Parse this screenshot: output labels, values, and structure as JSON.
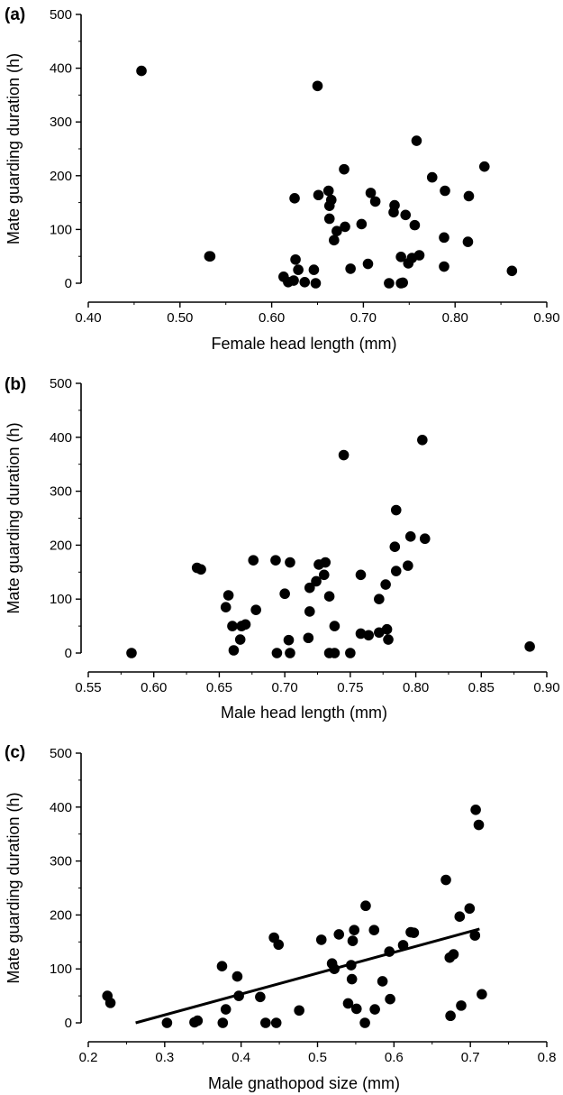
{
  "chart_data": [
    {
      "type": "scatter",
      "panel_label": "(a)",
      "xlabel": "Female head length (mm)",
      "ylabel": "Mate guarding duration (h)",
      "xlim": [
        0.4,
        0.9
      ],
      "ylim": [
        0,
        500
      ],
      "xticks": [
        "0.40",
        "0.50",
        "0.60",
        "0.70",
        "0.80",
        "0.90"
      ],
      "yticks": [
        "0",
        "100",
        "200",
        "300",
        "400",
        "500"
      ],
      "grid": false,
      "points": [
        [
          0.458,
          395
        ],
        [
          0.533,
          50
        ],
        [
          0.65,
          367
        ],
        [
          0.758,
          265
        ],
        [
          0.832,
          217
        ],
        [
          0.679,
          212
        ],
        [
          0.775,
          197
        ],
        [
          0.662,
          172
        ],
        [
          0.708,
          168
        ],
        [
          0.789,
          172
        ],
        [
          0.651,
          164
        ],
        [
          0.625,
          158
        ],
        [
          0.665,
          155
        ],
        [
          0.713,
          152
        ],
        [
          0.815,
          162
        ],
        [
          0.663,
          144
        ],
        [
          0.734,
          145
        ],
        [
          0.733,
          132
        ],
        [
          0.746,
          127
        ],
        [
          0.663,
          120
        ],
        [
          0.698,
          110
        ],
        [
          0.756,
          108
        ],
        [
          0.68,
          105
        ],
        [
          0.671,
          97
        ],
        [
          0.668,
          80
        ],
        [
          0.788,
          85
        ],
        [
          0.814,
          77
        ],
        [
          0.761,
          52
        ],
        [
          0.532,
          50
        ],
        [
          0.741,
          49
        ],
        [
          0.753,
          47
        ],
        [
          0.626,
          44
        ],
        [
          0.749,
          37
        ],
        [
          0.705,
          36
        ],
        [
          0.686,
          27
        ],
        [
          0.629,
          25
        ],
        [
          0.646,
          25
        ],
        [
          0.788,
          31
        ],
        [
          0.862,
          23
        ],
        [
          0.613,
          12
        ],
        [
          0.618,
          2
        ],
        [
          0.624,
          5
        ],
        [
          0.636,
          2
        ],
        [
          0.648,
          0
        ],
        [
          0.728,
          0
        ],
        [
          0.741,
          0
        ],
        [
          0.743,
          1
        ]
      ]
    },
    {
      "type": "scatter",
      "panel_label": "(b)",
      "xlabel": "Male head length (mm)",
      "ylabel": "Mate guarding duration (h)",
      "xlim": [
        0.55,
        0.9
      ],
      "ylim": [
        0,
        500
      ],
      "xticks": [
        "0.55",
        "0.60",
        "0.65",
        "0.70",
        "0.75",
        "0.80",
        "0.85",
        "0.90"
      ],
      "yticks": [
        "0",
        "100",
        "200",
        "300",
        "400",
        "500"
      ],
      "grid": false,
      "points": [
        [
          0.805,
          395
        ],
        [
          0.745,
          367
        ],
        [
          0.785,
          265
        ],
        [
          0.796,
          216
        ],
        [
          0.807,
          212
        ],
        [
          0.784,
          197
        ],
        [
          0.693,
          172
        ],
        [
          0.676,
          172
        ],
        [
          0.704,
          168
        ],
        [
          0.731,
          168
        ],
        [
          0.726,
          164
        ],
        [
          0.794,
          162
        ],
        [
          0.633,
          158
        ],
        [
          0.636,
          155
        ],
        [
          0.785,
          152
        ],
        [
          0.73,
          145
        ],
        [
          0.758,
          145
        ],
        [
          0.724,
          133
        ],
        [
          0.777,
          127
        ],
        [
          0.719,
          121
        ],
        [
          0.7,
          110
        ],
        [
          0.657,
          107
        ],
        [
          0.734,
          105
        ],
        [
          0.772,
          100
        ],
        [
          0.655,
          85
        ],
        [
          0.678,
          80
        ],
        [
          0.719,
          77
        ],
        [
          0.66,
          50
        ],
        [
          0.667,
          50
        ],
        [
          0.67,
          53
        ],
        [
          0.738,
          50
        ],
        [
          0.758,
          36
        ],
        [
          0.764,
          33
        ],
        [
          0.778,
          44
        ],
        [
          0.772,
          38
        ],
        [
          0.666,
          25
        ],
        [
          0.703,
          24
        ],
        [
          0.718,
          28
        ],
        [
          0.779,
          25
        ],
        [
          0.661,
          5
        ],
        [
          0.583,
          0
        ],
        [
          0.694,
          0
        ],
        [
          0.704,
          0
        ],
        [
          0.734,
          0
        ],
        [
          0.738,
          0
        ],
        [
          0.75,
          0
        ],
        [
          0.887,
          12
        ]
      ]
    },
    {
      "type": "scatter",
      "panel_label": "(c)",
      "xlabel": "Male gnathopod size (mm)",
      "ylabel": "Mate guarding duration (h)",
      "xlim": [
        0.2,
        0.8
      ],
      "ylim": [
        0,
        500
      ],
      "xticks": [
        "0.2",
        "0.3",
        "0.4",
        "0.5",
        "0.6",
        "0.7",
        "0.8"
      ],
      "yticks": [
        "0",
        "100",
        "200",
        "300",
        "400",
        "500"
      ],
      "grid": false,
      "regression_line": [
        [
          0.262,
          0
        ],
        [
          0.712,
          174
        ]
      ],
      "points": [
        [
          0.707,
          395
        ],
        [
          0.711,
          367
        ],
        [
          0.668,
          265
        ],
        [
          0.699,
          212
        ],
        [
          0.563,
          217
        ],
        [
          0.686,
          197
        ],
        [
          0.548,
          172
        ],
        [
          0.574,
          172
        ],
        [
          0.528,
          164
        ],
        [
          0.622,
          168
        ],
        [
          0.626,
          167
        ],
        [
          0.706,
          162
        ],
        [
          0.443,
          158
        ],
        [
          0.505,
          154
        ],
        [
          0.546,
          152
        ],
        [
          0.449,
          145
        ],
        [
          0.612,
          144
        ],
        [
          0.594,
          132
        ],
        [
          0.678,
          127
        ],
        [
          0.673,
          121
        ],
        [
          0.519,
          110
        ],
        [
          0.522,
          100
        ],
        [
          0.544,
          107
        ],
        [
          0.375,
          105
        ],
        [
          0.395,
          86
        ],
        [
          0.545,
          81
        ],
        [
          0.585,
          77
        ],
        [
          0.715,
          53
        ],
        [
          0.397,
          50
        ],
        [
          0.225,
          50
        ],
        [
          0.595,
          44
        ],
        [
          0.229,
          37
        ],
        [
          0.54,
          36
        ],
        [
          0.688,
          32
        ],
        [
          0.425,
          48
        ],
        [
          0.38,
          25
        ],
        [
          0.476,
          23
        ],
        [
          0.551,
          26
        ],
        [
          0.575,
          25
        ],
        [
          0.674,
          13
        ],
        [
          0.303,
          0
        ],
        [
          0.339,
          1
        ],
        [
          0.343,
          4
        ],
        [
          0.376,
          0
        ],
        [
          0.432,
          0
        ],
        [
          0.446,
          0
        ],
        [
          0.562,
          0
        ]
      ]
    }
  ]
}
